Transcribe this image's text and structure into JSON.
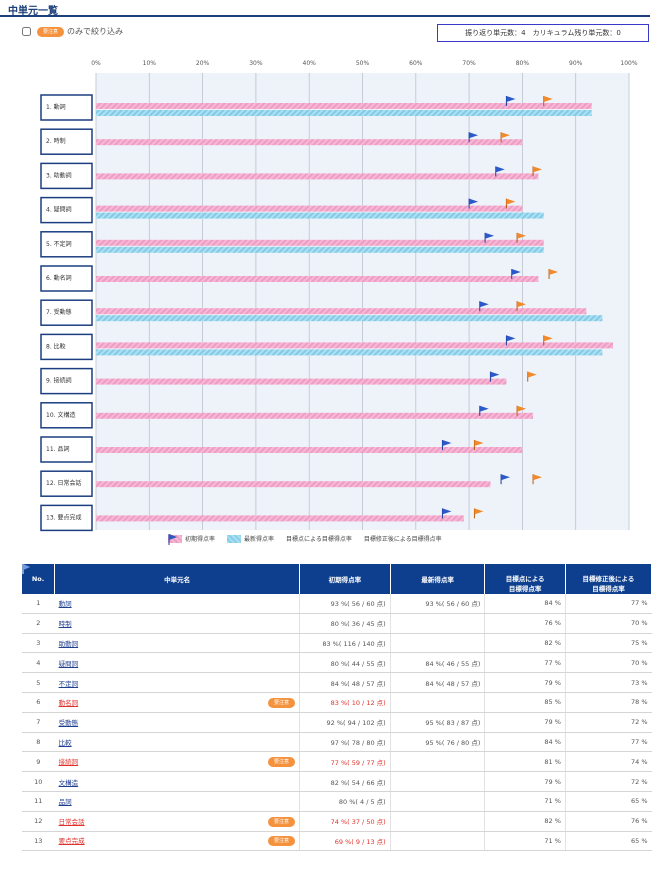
{
  "title": "中単元一覧",
  "filter": {
    "checkbox_checked": false,
    "badge": "要注意",
    "label": "のみで絞り込み"
  },
  "summary": "振り返り単元数：4　カリキュラム残り単元数：0",
  "legend": [
    "初期得点率",
    "最新得点率",
    "目標点による目標得点率",
    "目標修正後による目標得点率"
  ],
  "colors": {
    "header": "#0e3f8f",
    "initial": "#f4a9cd",
    "latest": "#90d3ec",
    "orange_flag": "#f08a2a",
    "blue_flag": "#2c59c9",
    "alert": "#e0302a"
  },
  "table": {
    "headers": [
      "No.",
      "中単元名",
      "初期得点率",
      "最新得点率",
      "目標点による\n目標得点率",
      "目標修正後による\n目標得点率"
    ],
    "rows": [
      {
        "no": "1",
        "name": "動詞",
        "alert": false,
        "initial": "93 %( 56 / 60 点)",
        "latest": "93 %( 56 / 60 点)",
        "target": "84 %",
        "revised": "77 %"
      },
      {
        "no": "2",
        "name": "時制",
        "alert": false,
        "initial": "80 %( 36 / 45 点)",
        "latest": "",
        "target": "76 %",
        "revised": "70 %"
      },
      {
        "no": "3",
        "name": "助動詞",
        "alert": false,
        "initial": "83 %( 116 / 140 点)",
        "latest": "",
        "target": "82 %",
        "revised": "75 %"
      },
      {
        "no": "4",
        "name": "疑問詞",
        "alert": false,
        "initial": "80 %( 44 / 55 点)",
        "latest": "84 %( 46 / 55 点)",
        "target": "77 %",
        "revised": "70 %"
      },
      {
        "no": "5",
        "name": "不定詞",
        "alert": false,
        "initial": "84 %( 48 / 57 点)",
        "latest": "84 %( 48 / 57 点)",
        "target": "79 %",
        "revised": "73 %"
      },
      {
        "no": "6",
        "name": "動名詞",
        "alert": true,
        "initial": "83 %( 10 / 12 点)",
        "latest": "",
        "target": "85 %",
        "revised": "78 %"
      },
      {
        "no": "7",
        "name": "受動態",
        "alert": false,
        "initial": "92 %( 94 / 102 点)",
        "latest": "95 %( 83 / 87 点)",
        "target": "79 %",
        "revised": "72 %"
      },
      {
        "no": "8",
        "name": "比較",
        "alert": false,
        "initial": "97 %( 78 / 80 点)",
        "latest": "95 %( 76 / 80 点)",
        "target": "84 %",
        "revised": "77 %"
      },
      {
        "no": "9",
        "name": "接続詞",
        "alert": true,
        "initial": "77 %( 59 / 77 点)",
        "latest": "",
        "target": "81 %",
        "revised": "74 %"
      },
      {
        "no": "10",
        "name": "文構造",
        "alert": false,
        "initial": "82 %( 54 / 66 点)",
        "latest": "",
        "target": "79 %",
        "revised": "72 %"
      },
      {
        "no": "11",
        "name": "品詞",
        "alert": false,
        "initial": "80 %( 4 / 5 点)",
        "latest": "",
        "target": "71 %",
        "revised": "65 %"
      },
      {
        "no": "12",
        "name": "日常会話",
        "alert": true,
        "initial": "74 %( 37 / 50 点)",
        "latest": "",
        "target": "82 %",
        "revised": "76 %"
      },
      {
        "no": "13",
        "name": "要点完成",
        "alert": true,
        "initial": "69 %( 9 / 13 点)",
        "latest": "",
        "target": "71 %",
        "revised": "65 %"
      }
    ]
  },
  "chart_data": {
    "type": "bar",
    "orientation": "horizontal",
    "xlim": [
      0,
      100
    ],
    "x_ticks": [
      "0%",
      "10%",
      "20%",
      "30%",
      "40%",
      "50%",
      "60%",
      "70%",
      "80%",
      "90%",
      "100%"
    ],
    "categories": [
      "1. 動詞",
      "2. 時制",
      "3. 助動詞",
      "4. 疑問詞",
      "5. 不定詞",
      "6. 動名詞",
      "7. 受動態",
      "8. 比較",
      "9. 接続詞",
      "10. 文構造",
      "11. 品詞",
      "12. 日常会話",
      "13. 要点完成"
    ],
    "series": [
      {
        "name": "初期得点率",
        "values": [
          93,
          80,
          83,
          80,
          84,
          83,
          92,
          97,
          77,
          82,
          80,
          74,
          69
        ]
      },
      {
        "name": "最新得点率",
        "values": [
          93,
          null,
          null,
          84,
          84,
          null,
          95,
          95,
          null,
          null,
          null,
          null,
          null
        ]
      },
      {
        "name": "目標点による目標得点率",
        "values": [
          84,
          76,
          82,
          77,
          79,
          85,
          79,
          84,
          81,
          79,
          71,
          82,
          71
        ]
      },
      {
        "name": "目標修正後による目標得点率",
        "values": [
          77,
          70,
          75,
          70,
          73,
          78,
          72,
          77,
          74,
          72,
          65,
          76,
          65
        ]
      }
    ]
  }
}
